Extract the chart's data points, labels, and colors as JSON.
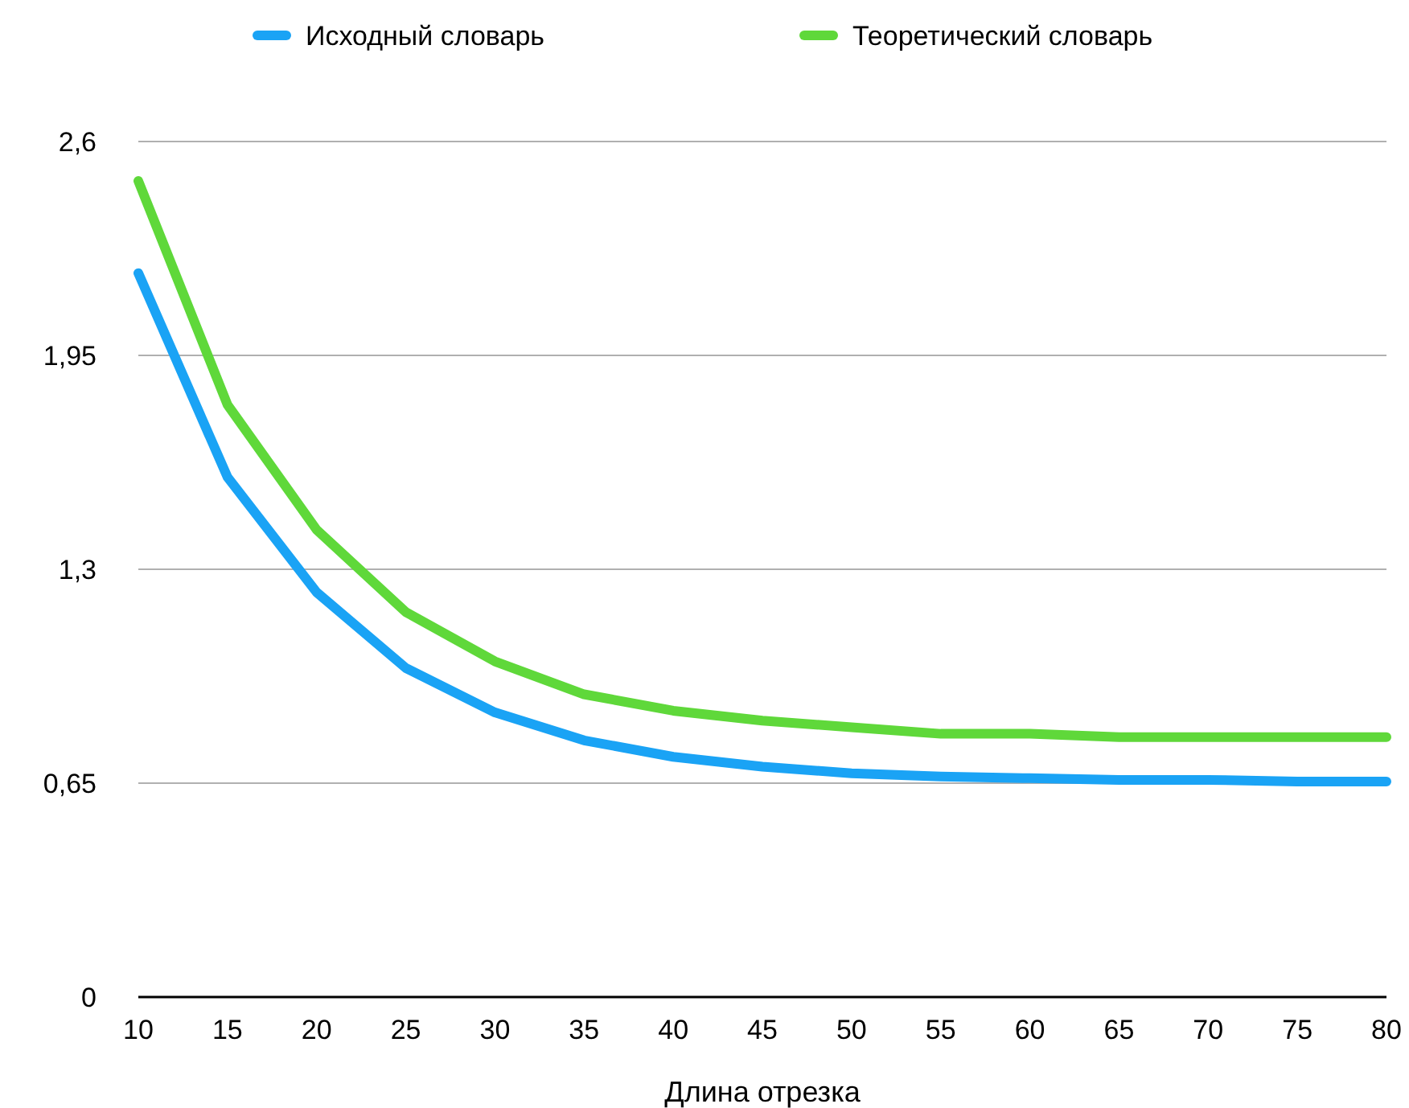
{
  "chart_data": {
    "type": "line",
    "xlabel": "Длина отрезка",
    "x": [
      10,
      15,
      20,
      25,
      30,
      35,
      40,
      45,
      50,
      55,
      60,
      65,
      70,
      75,
      80
    ],
    "series": [
      {
        "name": "Исходный словарь",
        "color": "#1aa3f5",
        "values": [
          2.2,
          1.58,
          1.23,
          1.0,
          0.865,
          0.78,
          0.73,
          0.7,
          0.68,
          0.67,
          0.665,
          0.66,
          0.66,
          0.655,
          0.655
        ]
      },
      {
        "name": "Теоретический словарь",
        "color": "#5fd83a",
        "values": [
          2.48,
          1.8,
          1.42,
          1.17,
          1.02,
          0.92,
          0.87,
          0.84,
          0.82,
          0.8,
          0.8,
          0.79,
          0.79,
          0.79,
          0.79
        ]
      }
    ],
    "xlim": [
      10,
      80
    ],
    "xticks": [
      10,
      15,
      20,
      25,
      30,
      35,
      40,
      45,
      50,
      55,
      60,
      65,
      70,
      75,
      80
    ],
    "ylim": [
      0,
      2.6
    ],
    "yticks": [
      0,
      {
        "value": 0.65,
        "label": "0,65"
      },
      {
        "value": 1.3,
        "label": "1,3"
      },
      {
        "value": 1.95,
        "label": "1,95"
      },
      {
        "value": 2.6,
        "label": "2,6"
      }
    ],
    "grid": "y",
    "legend": "top",
    "marker": "none",
    "line_style": "solid"
  }
}
